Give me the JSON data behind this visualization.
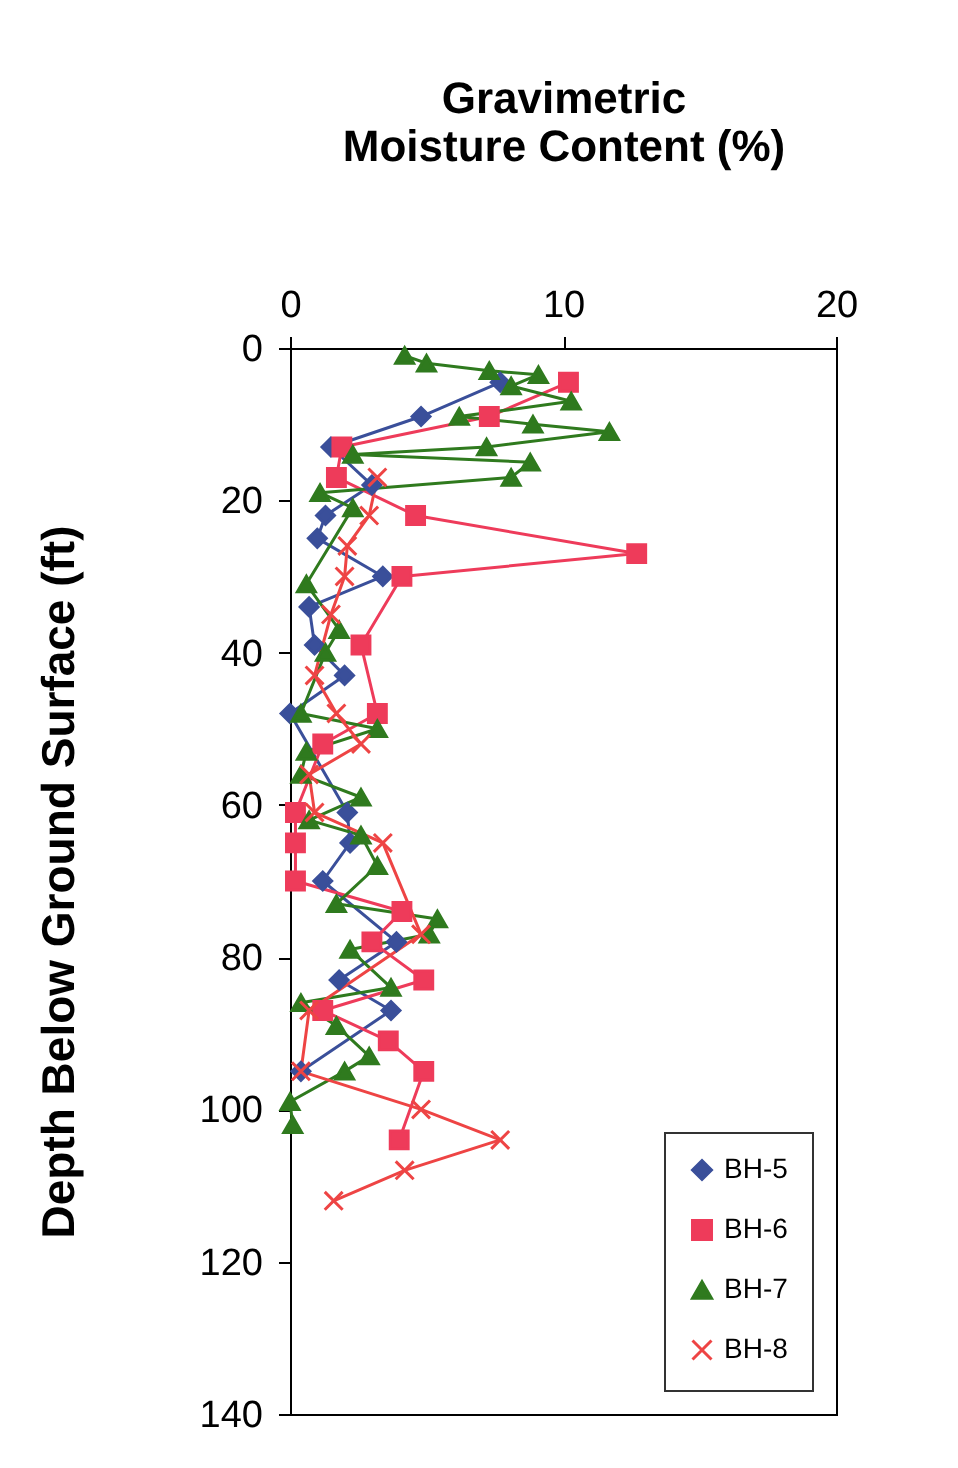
{
  "chart_data": {
    "type": "line",
    "xlabel": "Gravimetric Moisture Content (%)",
    "ylabel": "Depth Below Ground Surface (ft)",
    "xlim": [
      0,
      20
    ],
    "xticks": [
      0,
      10,
      20
    ],
    "ylim": [
      140,
      0
    ],
    "yticks": [
      0,
      20,
      40,
      60,
      80,
      100,
      120,
      140
    ],
    "grid": false,
    "legend": "bottom right",
    "series": [
      {
        "name": "BH-5",
        "color": "#3a4f9a",
        "marker": "diamond",
        "x": [
          7.7,
          4.8,
          1.5,
          3.0,
          1.3,
          1.0,
          3.4,
          0.7,
          0.9,
          2.0,
          0.0,
          2.1,
          2.2,
          1.2,
          3.9,
          1.8,
          3.7,
          0.4
        ],
        "values": [
          4.5,
          9,
          13,
          18,
          22,
          25,
          30,
          34,
          39,
          43,
          48,
          61,
          65,
          70,
          78,
          83,
          87,
          95
        ]
      },
      {
        "name": "BH-6",
        "color": "#ee3b5a",
        "marker": "square",
        "x": [
          10.2,
          7.3,
          1.9,
          1.7,
          4.6,
          12.7,
          4.1,
          2.6,
          3.2,
          1.2,
          0.2,
          0.2,
          0.2,
          4.1,
          3.0,
          4.9,
          1.2,
          3.6,
          4.9,
          4.0
        ],
        "values": [
          4.5,
          9,
          13,
          17,
          22,
          27,
          30,
          39,
          48,
          52,
          61,
          65,
          70,
          74,
          78,
          83,
          87,
          91,
          95,
          104
        ]
      },
      {
        "name": "BH-7",
        "color": "#2f7a1e",
        "marker": "triangle",
        "x": [
          4.2,
          5.0,
          7.3,
          9.1,
          8.1,
          10.3,
          6.2,
          8.9,
          11.7,
          7.2,
          2.3,
          8.8,
          8.1,
          1.1,
          2.3,
          0.6,
          1.8,
          1.3,
          0.4,
          3.2,
          0.6,
          0.4,
          2.6,
          0.7,
          2.6,
          3.2,
          1.7,
          5.4,
          5.1,
          2.2,
          3.7,
          0.4,
          1.7,
          2.9,
          2.0,
          0.0,
          0.1
        ],
        "values": [
          1,
          2,
          3,
          3.5,
          5,
          7,
          9,
          10,
          11,
          13,
          14,
          15,
          17,
          19,
          21,
          31,
          37,
          40,
          48,
          50,
          53,
          56,
          59,
          62,
          64,
          68,
          73,
          75,
          77,
          79,
          84,
          86,
          89,
          93,
          95,
          99,
          102
        ]
      },
      {
        "name": "BH-8",
        "color": "#ee4444",
        "marker": "cross",
        "x": [
          3.2,
          2.9,
          2.1,
          2.0,
          1.5,
          0.9,
          1.7,
          2.6,
          0.7,
          0.9,
          3.4,
          4.8,
          0.7,
          0.4,
          4.8,
          7.7,
          4.2,
          1.6
        ],
        "values": [
          17,
          22,
          26,
          30,
          35,
          43,
          48,
          52,
          56,
          61,
          65,
          77,
          87,
          95,
          100,
          104,
          108,
          112
        ]
      }
    ]
  }
}
